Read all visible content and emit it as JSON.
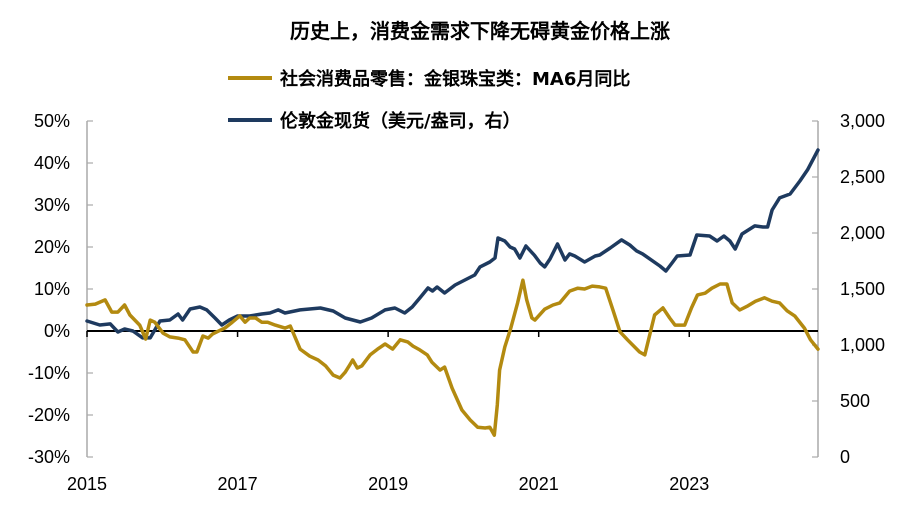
{
  "chart_data": {
    "type": "line",
    "title": "历史上，消费金需求下降无碍黄金价格上涨",
    "colors": {
      "retail": "#B38A10",
      "gold": "#1E3A5F"
    },
    "x_ticks": [
      "2015",
      "2017",
      "2019",
      "2021",
      "2023"
    ],
    "x_tick_values": [
      2015,
      2017,
      2019,
      2021,
      2023
    ],
    "xlim": [
      2015,
      2024.71
    ],
    "y_left": {
      "ticks": [
        "50%",
        "40%",
        "30%",
        "20%",
        "10%",
        "0%",
        "-10%",
        "-20%",
        "-30%"
      ],
      "tick_values": [
        50,
        40,
        30,
        20,
        10,
        0,
        -10,
        -20,
        -30
      ],
      "ylim": [
        -30,
        50
      ]
    },
    "y_right": {
      "ticks": [
        "3,000",
        "2,500",
        "2,000",
        "1,500",
        "1,000",
        "500",
        "0"
      ],
      "tick_values": [
        3000,
        2500,
        2000,
        1500,
        1000,
        500,
        0
      ],
      "ylim": [
        0,
        3000
      ]
    },
    "legend_position": "top-center",
    "series": [
      {
        "name": "社会消费品零售：金银珠宝类：MA6月同比",
        "axis": "left",
        "x": [
          2015.0,
          2015.11,
          2015.24,
          2015.33,
          2015.41,
          2015.5,
          2015.57,
          2015.7,
          2015.78,
          2015.84,
          2015.9,
          2016.01,
          2016.1,
          2016.21,
          2016.3,
          2016.41,
          2016.46,
          2016.54,
          2016.61,
          2016.67,
          2016.77,
          2016.83,
          2016.93,
          2017.03,
          2017.1,
          2017.16,
          2017.24,
          2017.32,
          2017.4,
          2017.5,
          2017.63,
          2017.7,
          2017.83,
          2017.96,
          2018.07,
          2018.17,
          2018.27,
          2018.36,
          2018.43,
          2018.49,
          2018.53,
          2018.59,
          2018.65,
          2018.76,
          2018.86,
          2018.96,
          2019.06,
          2019.16,
          2019.26,
          2019.33,
          2019.42,
          2019.52,
          2019.58,
          2019.69,
          2019.75,
          2019.85,
          2019.98,
          2020.09,
          2020.19,
          2020.29,
          2020.35,
          2020.41,
          2020.45,
          2020.48,
          2020.55,
          2020.63,
          2020.72,
          2020.79,
          2020.84,
          2020.91,
          2020.95,
          2021.08,
          2021.19,
          2021.28,
          2021.41,
          2021.52,
          2021.61,
          2021.71,
          2021.81,
          2021.89,
          2021.99,
          2022.08,
          2022.18,
          2022.34,
          2022.41,
          2022.54,
          2022.65,
          2022.74,
          2022.81,
          2022.94,
          2023.03,
          2023.11,
          2023.21,
          2023.3,
          2023.41,
          2023.5,
          2023.57,
          2023.67,
          2023.78,
          2023.88,
          2024.0,
          2024.1,
          2024.2,
          2024.3,
          2024.4,
          2024.53,
          2024.61,
          2024.71
        ],
        "values": [
          6.2,
          6.4,
          7.4,
          4.5,
          4.5,
          6.2,
          3.8,
          1.4,
          -1.9,
          2.6,
          2.1,
          -0.5,
          -1.4,
          -1.7,
          -2.1,
          -5.0,
          -5.0,
          -1.2,
          -1.7,
          -0.7,
          0.2,
          0.7,
          2.1,
          3.6,
          2.1,
          3.1,
          3.1,
          2.1,
          2.1,
          1.4,
          0.7,
          1.2,
          -4.3,
          -6.0,
          -6.9,
          -8.3,
          -10.5,
          -11.2,
          -9.8,
          -8.1,
          -6.9,
          -8.8,
          -8.3,
          -5.7,
          -4.3,
          -3.1,
          -4.3,
          -2.1,
          -2.6,
          -3.6,
          -4.5,
          -5.7,
          -7.4,
          -9.3,
          -8.6,
          -13.6,
          -18.8,
          -21.2,
          -22.9,
          -23.1,
          -22.9,
          -24.8,
          -17.6,
          -9.3,
          -3.8,
          0.7,
          6.7,
          12.1,
          7.4,
          3.1,
          2.6,
          5.2,
          6.2,
          6.7,
          9.5,
          10.2,
          10.0,
          10.7,
          10.5,
          10.2,
          4.8,
          -0.2,
          -2.1,
          -5.0,
          -5.7,
          3.8,
          5.5,
          3.1,
          1.4,
          1.4,
          5.5,
          8.6,
          9.0,
          10.2,
          11.2,
          11.2,
          6.7,
          5.0,
          6.0,
          7.1,
          7.9,
          7.1,
          6.7,
          4.8,
          3.6,
          0.7,
          -2.1,
          -4.3
        ]
      },
      {
        "name": "伦敦金现货（美元/盎司，右）",
        "axis": "right",
        "x": [
          2015.0,
          2015.17,
          2015.31,
          2015.41,
          2015.5,
          2015.61,
          2015.74,
          2015.84,
          2015.97,
          2016.1,
          2016.21,
          2016.27,
          2016.37,
          2016.5,
          2016.59,
          2016.7,
          2016.79,
          2016.89,
          2017.0,
          2017.16,
          2017.32,
          2017.43,
          2017.54,
          2017.63,
          2017.83,
          2018.1,
          2018.27,
          2018.43,
          2018.63,
          2018.78,
          2018.96,
          2019.09,
          2019.22,
          2019.32,
          2019.42,
          2019.53,
          2019.59,
          2019.65,
          2019.75,
          2019.89,
          2020.02,
          2020.15,
          2020.22,
          2020.35,
          2020.42,
          2020.46,
          2020.55,
          2020.62,
          2020.68,
          2020.75,
          2020.83,
          2020.94,
          2021.02,
          2021.08,
          2021.15,
          2021.25,
          2021.35,
          2021.41,
          2021.48,
          2021.61,
          2021.75,
          2021.81,
          2021.95,
          2022.1,
          2022.21,
          2022.3,
          2022.38,
          2022.61,
          2022.69,
          2022.77,
          2022.84,
          2023.01,
          2023.1,
          2023.27,
          2023.37,
          2023.46,
          2023.54,
          2023.61,
          2023.7,
          2023.87,
          2023.98,
          2024.04,
          2024.1,
          2024.2,
          2024.34,
          2024.47,
          2024.57,
          2024.71
        ],
        "values": [
          1214,
          1179,
          1188,
          1116,
          1143,
          1125,
          1063,
          1063,
          1214,
          1223,
          1277,
          1223,
          1321,
          1339,
          1313,
          1241,
          1179,
          1223,
          1259,
          1259,
          1277,
          1286,
          1313,
          1286,
          1313,
          1330,
          1304,
          1241,
          1205,
          1241,
          1313,
          1330,
          1286,
          1339,
          1420,
          1509,
          1482,
          1518,
          1464,
          1536,
          1580,
          1625,
          1697,
          1741,
          1777,
          1955,
          1929,
          1875,
          1857,
          1777,
          1884,
          1804,
          1732,
          1697,
          1768,
          1902,
          1759,
          1813,
          1795,
          1741,
          1795,
          1804,
          1866,
          1938,
          1893,
          1840,
          1813,
          1705,
          1661,
          1732,
          1795,
          1804,
          1982,
          1973,
          1929,
          1973,
          1929,
          1857,
          1991,
          2063,
          2054,
          2054,
          2205,
          2313,
          2348,
          2464,
          2563,
          2741
        ]
      }
    ]
  }
}
